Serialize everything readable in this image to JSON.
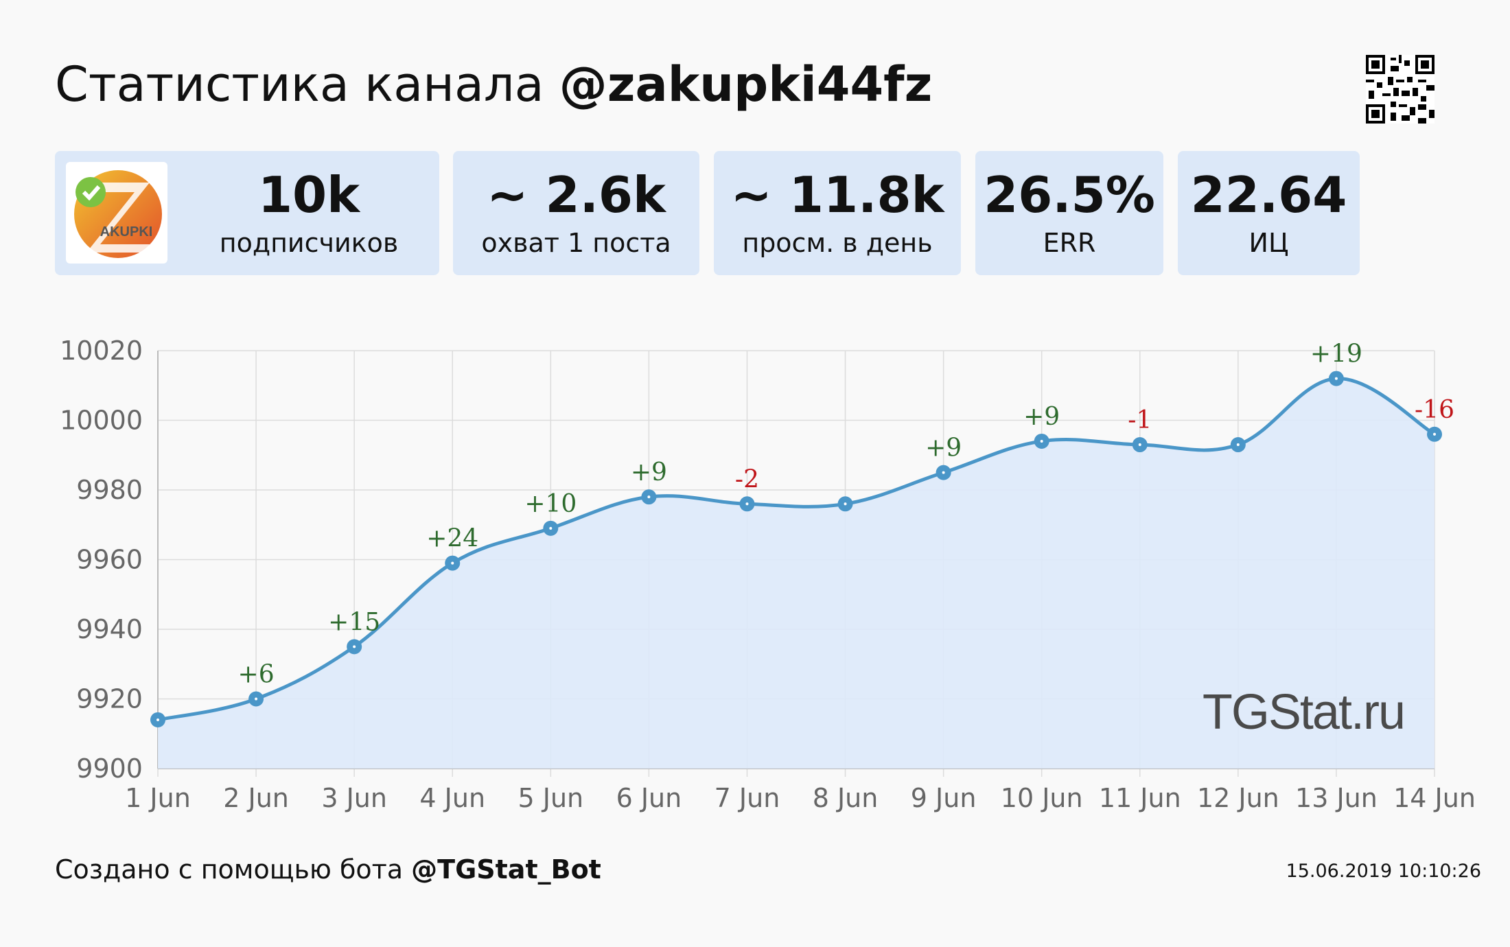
{
  "header": {
    "title_prefix": "Статистика канала",
    "channel": "@zakupki44fz"
  },
  "logo": {
    "text": "AKUPKI"
  },
  "stats": [
    {
      "value": "10k",
      "label": "подписчиков"
    },
    {
      "value": "~ 2.6k",
      "label": "охват 1 поста"
    },
    {
      "value": "~ 11.8k",
      "label": "просм. в день"
    },
    {
      "value": "26.5%",
      "label": "ERR"
    },
    {
      "value": "22.64",
      "label": "ИЦ"
    }
  ],
  "watermark": "TGStat.ru",
  "footer": {
    "prefix": "Создано с помощью бота",
    "bot": "@TGStat_Bot",
    "timestamp": "15.06.2019 10:10:26"
  },
  "colors": {
    "line": "#4a96c8",
    "fill": "#dde9fa",
    "positive": "#2e6b2e",
    "negative": "#c0161a"
  },
  "chart_data": {
    "type": "line",
    "categories": [
      "1 Jun",
      "2 Jun",
      "3 Jun",
      "4 Jun",
      "5 Jun",
      "6 Jun",
      "7 Jun",
      "8 Jun",
      "9 Jun",
      "10 Jun",
      "11 Jun",
      "12 Jun",
      "13 Jun",
      "14 Jun"
    ],
    "values": [
      9914,
      9920,
      9935,
      9959,
      9969,
      9978,
      9976,
      9976,
      9985,
      9994,
      9993,
      9993,
      10012,
      9996
    ],
    "annotations": [
      "",
      "+6",
      "+15",
      "+24",
      "+10",
      "+9",
      "-2",
      "",
      "+9",
      "+9",
      "-1",
      "",
      "+19",
      "-16"
    ],
    "ylim": [
      9900,
      10020
    ],
    "yticks": [
      9900,
      9920,
      9940,
      9960,
      9980,
      10000,
      10020
    ],
    "grid": true,
    "title": "",
    "xlabel": "",
    "ylabel": ""
  }
}
